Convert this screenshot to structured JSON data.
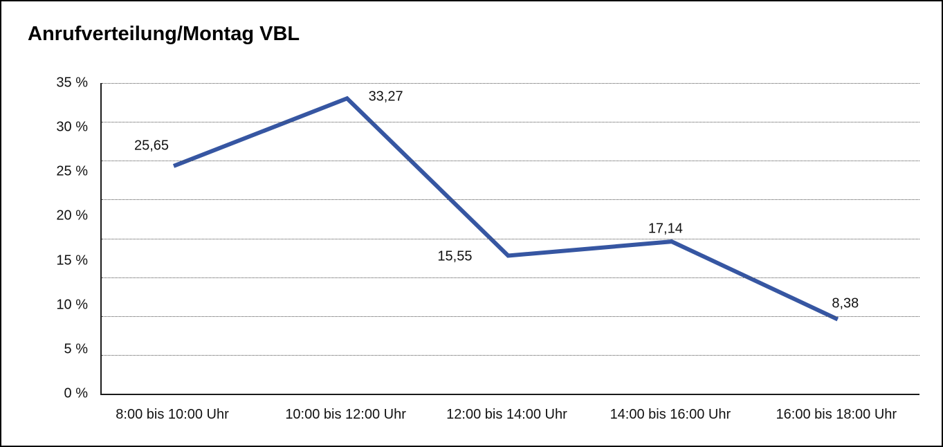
{
  "window": {
    "background": "#ffffff",
    "border_color": "#000000"
  },
  "header": {
    "title": "Anrufverteilung/Montag VBL"
  },
  "chart_data": {
    "type": "line",
    "title": "Anrufverteilung/Montag VBL",
    "categories": [
      "8:00 bis 10:00 Uhr",
      "10:00 bis 12:00 Uhr",
      "12:00 bis 14:00 Uhr",
      "14:00 bis 16:00 Uhr",
      "16:00 bis 18:00 Uhr"
    ],
    "values": [
      25.65,
      33.27,
      15.55,
      17.14,
      8.38
    ],
    "value_labels": [
      "25,65",
      "33,27",
      "15,55",
      "17,14",
      "8,38"
    ],
    "xlabel": "",
    "ylabel": "",
    "ylim": [
      0,
      35
    ],
    "y_tick_values": [
      0,
      5,
      10,
      15,
      20,
      25,
      30,
      35
    ],
    "y_tick_labels": [
      "0 %",
      "5 %",
      "10 %",
      "15 %",
      "20 %",
      "25 %",
      "30 %",
      "35 %"
    ],
    "grid": {
      "horizontal": "dotted",
      "divisions": 8,
      "vertical": false
    },
    "legend_position": "none",
    "line_color": "#3656A2",
    "line_width": 6,
    "markers": "none",
    "text_color": "#111111"
  }
}
